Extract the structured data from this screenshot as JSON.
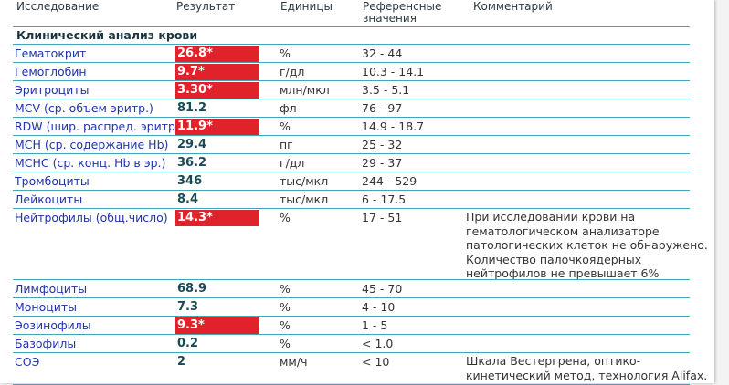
{
  "table": {
    "headers": {
      "test": "Исследование",
      "result": "Результат",
      "units": "Единицы",
      "reference_line1": "Референсные",
      "reference_line2": "значения",
      "comment": "Комментарий"
    },
    "section_title": "Клинический анализ крови",
    "rows": [
      {
        "name": "Гематокрит",
        "result": "26.8*",
        "flag": true,
        "unit": "%",
        "ref": "32 - 44",
        "comment": ""
      },
      {
        "name": "Гемоглобин",
        "result": "9.7*",
        "flag": true,
        "unit": "г/дл",
        "ref": "10.3 - 14.1",
        "comment": ""
      },
      {
        "name": "Эритроциты",
        "result": "3.30*",
        "flag": true,
        "unit": "млн/мкл",
        "ref": "3.5 - 5.1",
        "comment": ""
      },
      {
        "name": "MCV (ср. объем эритр.)",
        "result": "81.2",
        "flag": false,
        "unit": "фл",
        "ref": "76 - 97",
        "comment": ""
      },
      {
        "name": "RDW (шир. распред. эритр)",
        "result": "11.9*",
        "flag": true,
        "unit": "%",
        "ref": "14.9 - 18.7",
        "comment": ""
      },
      {
        "name": "MCH (ср. содержание Hb)",
        "result": "29.4",
        "flag": false,
        "unit": "пг",
        "ref": "25 - 32",
        "comment": ""
      },
      {
        "name": "MCHC (ср. конц. Hb в эр.)",
        "result": "36.2",
        "flag": false,
        "unit": "г/дл",
        "ref": "29 - 37",
        "comment": ""
      },
      {
        "name": "Тромбоциты",
        "result": "346",
        "flag": false,
        "unit": "тыс/мкл",
        "ref": "244 - 529",
        "comment": ""
      },
      {
        "name": "Лейкоциты",
        "result": "8.4",
        "flag": false,
        "unit": "тыс/мкл",
        "ref": "6 - 17.5",
        "comment": ""
      },
      {
        "name": "Нейтрофилы (общ.число)",
        "result": "14.3*",
        "flag": true,
        "unit": "%",
        "ref": "17 - 51",
        "comment": "При исследовании крови на гематологическом анализаторе патологических клеток не обнаружено. Количество палочкоядерных нейтрофилов не превышает 6%"
      },
      {
        "name": "Лимфоциты",
        "result": "68.9",
        "flag": false,
        "unit": "%",
        "ref": "45 - 70",
        "comment": ""
      },
      {
        "name": "Моноциты",
        "result": "7.3",
        "flag": false,
        "unit": "%",
        "ref": "4 - 10",
        "comment": ""
      },
      {
        "name": "Эозинофилы",
        "result": "9.3*",
        "flag": true,
        "unit": "%",
        "ref": "1 - 5",
        "comment": ""
      },
      {
        "name": "Базофилы",
        "result": "0.2",
        "flag": false,
        "unit": "%",
        "ref": "< 1.0",
        "comment": ""
      },
      {
        "name": "СОЭ",
        "result": "2",
        "flag": false,
        "unit": "мм/ч",
        "ref": "< 10",
        "comment": "Шкала Вестергрена, оптико-кинетический метод, технология Alifax."
      }
    ]
  },
  "colors": {
    "flag_bg": "#e0222a",
    "rule": "#3fa7b5",
    "name_text": "#1f35a8",
    "result_text": "#1a4a55"
  }
}
